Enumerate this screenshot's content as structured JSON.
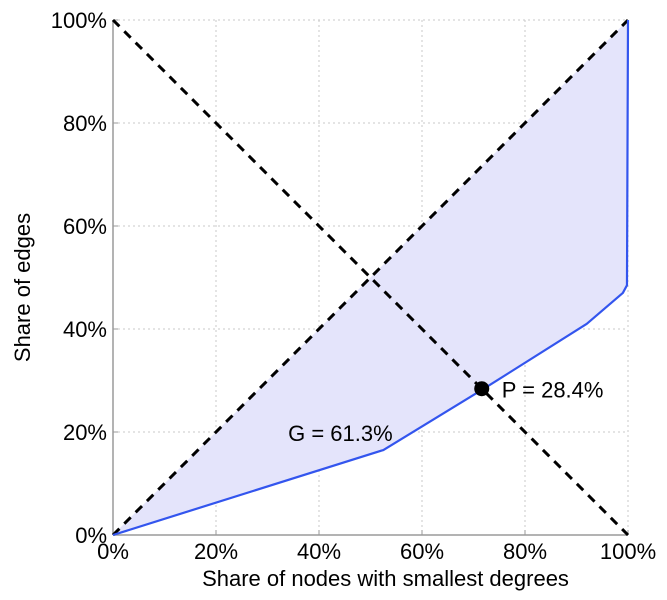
{
  "chart_data": {
    "type": "line",
    "title": "",
    "xlabel": "Share of nodes with smallest degrees",
    "ylabel": "Share of edges",
    "xlim": [
      0,
      100
    ],
    "ylim": [
      0,
      100
    ],
    "grid": true,
    "x_ticks": [
      "0%",
      "20%",
      "40%",
      "60%",
      "80%",
      "100%"
    ],
    "y_ticks": [
      "0%",
      "20%",
      "40%",
      "60%",
      "80%",
      "100%"
    ],
    "x_tick_values": [
      0,
      20,
      40,
      60,
      80,
      100
    ],
    "y_tick_values": [
      0,
      20,
      40,
      60,
      80,
      100
    ],
    "series": [
      {
        "name": "Lorenz curve",
        "x": [
          0,
          52.5,
          72,
          92,
          99,
          99.8,
          100
        ],
        "y": [
          0,
          16.5,
          28.4,
          41,
          47,
          48.5,
          100
        ]
      },
      {
        "name": "equality diagonal",
        "x": [
          0,
          100
        ],
        "y": [
          0,
          100
        ]
      },
      {
        "name": "anti-diagonal",
        "x": [
          0,
          100
        ],
        "y": [
          100,
          0
        ]
      }
    ],
    "point": {
      "x": 71.6,
      "y": 28.4,
      "label": "P = 28.4%"
    },
    "area_label": {
      "text": "G = 61.3%",
      "x": 34,
      "y": 20
    },
    "colors": {
      "curve": "#3355ee",
      "fill": "#e4e4fb",
      "diagonal": "#000000",
      "grid": "#c8c8c8",
      "point": "#000000"
    }
  }
}
